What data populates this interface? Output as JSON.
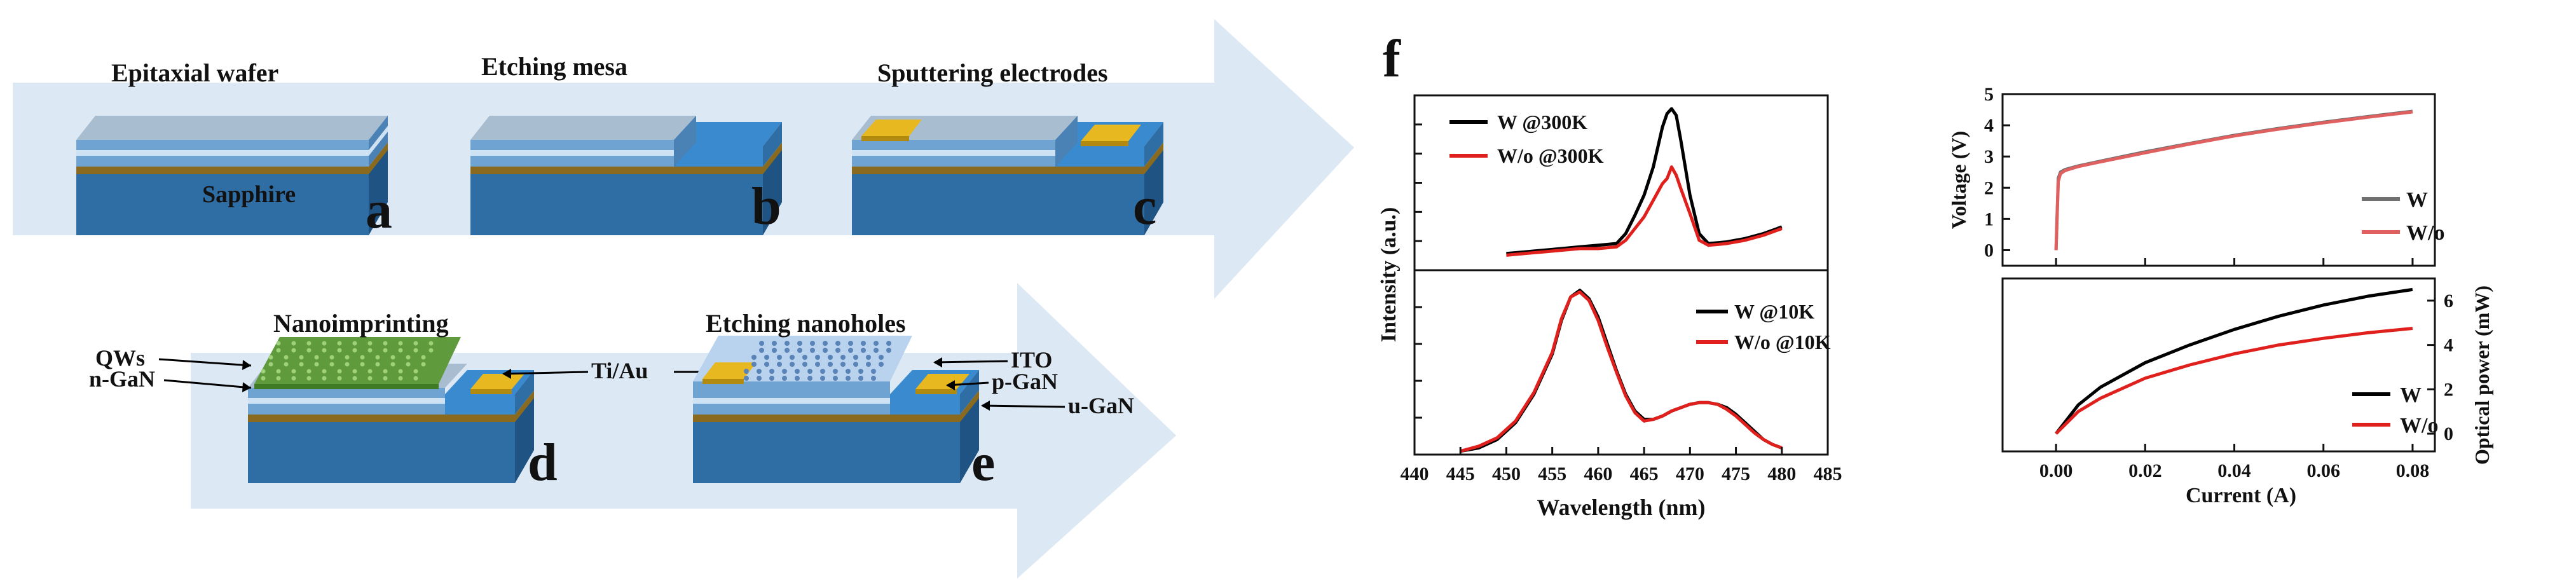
{
  "panel_letters": [
    "a",
    "b",
    "c",
    "d",
    "e",
    "f"
  ],
  "steps": [
    {
      "title": "Epitaxial wafer",
      "letter": "a"
    },
    {
      "title": "Etching mesa",
      "letter": "b"
    },
    {
      "title": "Sputtering electrodes",
      "letter": "c"
    },
    {
      "title": "Nanoimprinting",
      "letter": "d"
    },
    {
      "title": "Etching nanoholes",
      "letter": "e"
    }
  ],
  "substrate_label": "Sapphire",
  "layer_labels": {
    "qws": "QWs",
    "ngan": "n-GaN",
    "tiau": "Ti/Au",
    "ito": "ITO",
    "pgan": "p-GaN",
    "ugan": "u-GaN"
  },
  "colors": {
    "arrow": "#dce8f4",
    "substrate": "#2f6ea5",
    "layer_gold": "#8a6a1f",
    "layer_light": "#cfe2f3",
    "layer_blue": "#6fa4d2",
    "mesa_top": "#a9bdd0",
    "electrode": "#e8b820",
    "ito": "#b9d3ee",
    "imprint": "#5f9a3c",
    "black": "#000000",
    "red": "#e0201c",
    "gray": "#707070",
    "red_light": "#e06060"
  },
  "chart_data": [
    {
      "type": "line",
      "id": "pl_300K",
      "xlim": [
        440,
        485
      ],
      "ylabel": "Intensity (a.u.)",
      "series": [
        {
          "name": "W @300K",
          "color": "#000000",
          "x": [
            450,
            452,
            454,
            456,
            458,
            460,
            462,
            463,
            464,
            465,
            466,
            467,
            467.5,
            468,
            468.5,
            469,
            470,
            471,
            472,
            474,
            476,
            478,
            480
          ],
          "y": [
            0.1,
            0.11,
            0.12,
            0.13,
            0.14,
            0.15,
            0.16,
            0.22,
            0.33,
            0.45,
            0.62,
            0.86,
            0.94,
            0.97,
            0.93,
            0.78,
            0.45,
            0.22,
            0.16,
            0.17,
            0.19,
            0.22,
            0.26
          ]
        },
        {
          "name": "W/o @300K",
          "color": "#e0201c",
          "x": [
            450,
            452,
            454,
            456,
            458,
            460,
            462,
            463,
            464,
            465,
            466,
            467,
            467.5,
            468,
            468.5,
            469,
            470,
            471,
            472,
            474,
            476,
            478,
            480
          ],
          "y": [
            0.09,
            0.1,
            0.11,
            0.12,
            0.13,
            0.13,
            0.14,
            0.18,
            0.25,
            0.32,
            0.42,
            0.52,
            0.55,
            0.62,
            0.57,
            0.49,
            0.34,
            0.18,
            0.15,
            0.16,
            0.18,
            0.21,
            0.25
          ]
        }
      ]
    },
    {
      "type": "line",
      "id": "pl_10K",
      "xlim": [
        440,
        485
      ],
      "xlabel": "Wavelength (nm)",
      "xticks": [
        440,
        445,
        450,
        455,
        460,
        465,
        470,
        475,
        480,
        485
      ],
      "series": [
        {
          "name": "W @10K",
          "color": "#000000",
          "x": [
            445,
            447,
            449,
            451,
            453,
            455,
            456,
            457,
            458,
            459,
            460,
            461,
            462,
            463,
            464,
            465,
            466,
            467,
            468,
            469,
            470,
            471,
            472,
            473,
            474,
            475,
            476,
            477,
            478,
            479,
            480
          ],
          "y": [
            0.02,
            0.04,
            0.09,
            0.19,
            0.36,
            0.6,
            0.8,
            0.94,
            0.98,
            0.93,
            0.82,
            0.66,
            0.5,
            0.36,
            0.26,
            0.21,
            0.21,
            0.23,
            0.26,
            0.28,
            0.3,
            0.31,
            0.31,
            0.3,
            0.28,
            0.24,
            0.19,
            0.14,
            0.09,
            0.06,
            0.04
          ]
        },
        {
          "name": "W/o @10K",
          "color": "#e0201c",
          "x": [
            445,
            447,
            449,
            451,
            453,
            455,
            456,
            457,
            458,
            459,
            460,
            461,
            462,
            463,
            464,
            465,
            466,
            467,
            468,
            469,
            470,
            471,
            472,
            473,
            474,
            475,
            476,
            477,
            478,
            479,
            480
          ],
          "y": [
            0.02,
            0.05,
            0.1,
            0.2,
            0.37,
            0.61,
            0.81,
            0.94,
            0.97,
            0.92,
            0.8,
            0.64,
            0.49,
            0.35,
            0.25,
            0.2,
            0.21,
            0.23,
            0.26,
            0.28,
            0.3,
            0.31,
            0.31,
            0.3,
            0.27,
            0.23,
            0.18,
            0.13,
            0.09,
            0.06,
            0.04
          ]
        }
      ]
    },
    {
      "type": "line",
      "id": "iv",
      "xlim": [
        -0.012,
        0.085
      ],
      "ylim": [
        -0.5,
        5
      ],
      "ylabel": "Voltage (V)",
      "yticks": [
        0,
        1,
        2,
        3,
        4,
        5
      ],
      "series": [
        {
          "name": "W",
          "color": "#707070",
          "x": [
            0,
            0.0005,
            0.001,
            0.002,
            0.005,
            0.01,
            0.02,
            0.03,
            0.04,
            0.05,
            0.06,
            0.07,
            0.08
          ],
          "y": [
            0,
            2.3,
            2.5,
            2.58,
            2.7,
            2.85,
            3.15,
            3.42,
            3.68,
            3.9,
            4.1,
            4.28,
            4.45
          ]
        },
        {
          "name": "W/o",
          "color": "#e06060",
          "x": [
            0,
            0.0005,
            0.001,
            0.002,
            0.005,
            0.01,
            0.02,
            0.03,
            0.04,
            0.05,
            0.06,
            0.07,
            0.08
          ],
          "y": [
            0,
            2.2,
            2.45,
            2.55,
            2.68,
            2.83,
            3.12,
            3.4,
            3.66,
            3.88,
            4.08,
            4.26,
            4.43
          ]
        }
      ]
    },
    {
      "type": "line",
      "id": "lp",
      "xlim": [
        -0.012,
        0.085
      ],
      "ylim": [
        -0.8,
        7
      ],
      "xlabel": "Current (A)",
      "ylabel": "Optical power (mW)",
      "xticks": [
        0.0,
        0.02,
        0.04,
        0.06,
        0.08
      ],
      "xtick_labels": [
        "0.00",
        "0.02",
        "0.04",
        "0.06",
        "0.08"
      ],
      "yticks": [
        0,
        2,
        4,
        6
      ],
      "series": [
        {
          "name": "W",
          "color": "#000000",
          "x": [
            0,
            0.005,
            0.01,
            0.02,
            0.03,
            0.04,
            0.05,
            0.06,
            0.07,
            0.08
          ],
          "y": [
            0,
            1.3,
            2.1,
            3.2,
            4.0,
            4.7,
            5.3,
            5.8,
            6.2,
            6.5
          ]
        },
        {
          "name": "W/o",
          "color": "#e0201c",
          "x": [
            0,
            0.005,
            0.01,
            0.02,
            0.03,
            0.04,
            0.05,
            0.06,
            0.07,
            0.08
          ],
          "y": [
            0,
            1.0,
            1.6,
            2.5,
            3.1,
            3.6,
            4.0,
            4.3,
            4.55,
            4.75
          ]
        }
      ]
    }
  ]
}
